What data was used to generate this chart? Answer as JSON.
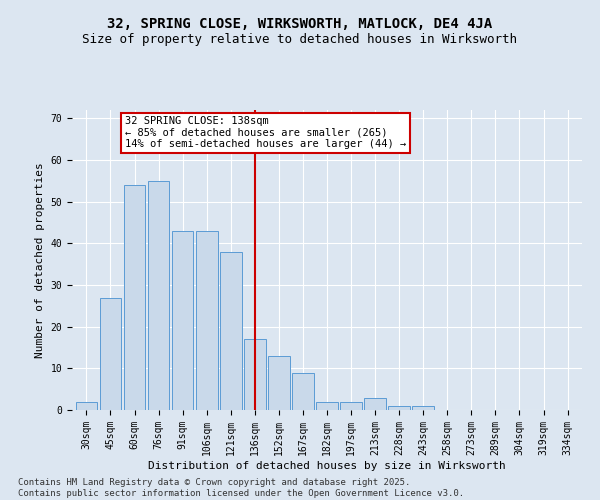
{
  "title": "32, SPRING CLOSE, WIRKSWORTH, MATLOCK, DE4 4JA",
  "subtitle": "Size of property relative to detached houses in Wirksworth",
  "xlabel": "Distribution of detached houses by size in Wirksworth",
  "ylabel": "Number of detached properties",
  "categories": [
    "30sqm",
    "45sqm",
    "60sqm",
    "76sqm",
    "91sqm",
    "106sqm",
    "121sqm",
    "136sqm",
    "152sqm",
    "167sqm",
    "182sqm",
    "197sqm",
    "213sqm",
    "228sqm",
    "243sqm",
    "258sqm",
    "273sqm",
    "289sqm",
    "304sqm",
    "319sqm",
    "334sqm"
  ],
  "values": [
    2,
    27,
    54,
    55,
    43,
    43,
    38,
    17,
    13,
    9,
    2,
    2,
    3,
    1,
    1,
    0,
    0,
    0,
    0,
    0,
    0
  ],
  "bar_color": "#c9d9ea",
  "bar_edge_color": "#5b9bd5",
  "highlight_index": 7,
  "vline_color": "#cc0000",
  "annotation_line1": "32 SPRING CLOSE: 138sqm",
  "annotation_line2": "← 85% of detached houses are smaller (265)",
  "annotation_line3": "14% of semi-detached houses are larger (44) →",
  "annotation_box_color": "#ffffff",
  "annotation_box_edge_color": "#cc0000",
  "ylim": [
    0,
    72
  ],
  "yticks": [
    0,
    10,
    20,
    30,
    40,
    50,
    60,
    70
  ],
  "background_color": "#dce6f1",
  "grid_color": "#ffffff",
  "footer": "Contains HM Land Registry data © Crown copyright and database right 2025.\nContains public sector information licensed under the Open Government Licence v3.0.",
  "title_fontsize": 10,
  "subtitle_fontsize": 9,
  "xlabel_fontsize": 8,
  "ylabel_fontsize": 8,
  "tick_fontsize": 7,
  "annotation_fontsize": 7.5,
  "footer_fontsize": 6.5
}
